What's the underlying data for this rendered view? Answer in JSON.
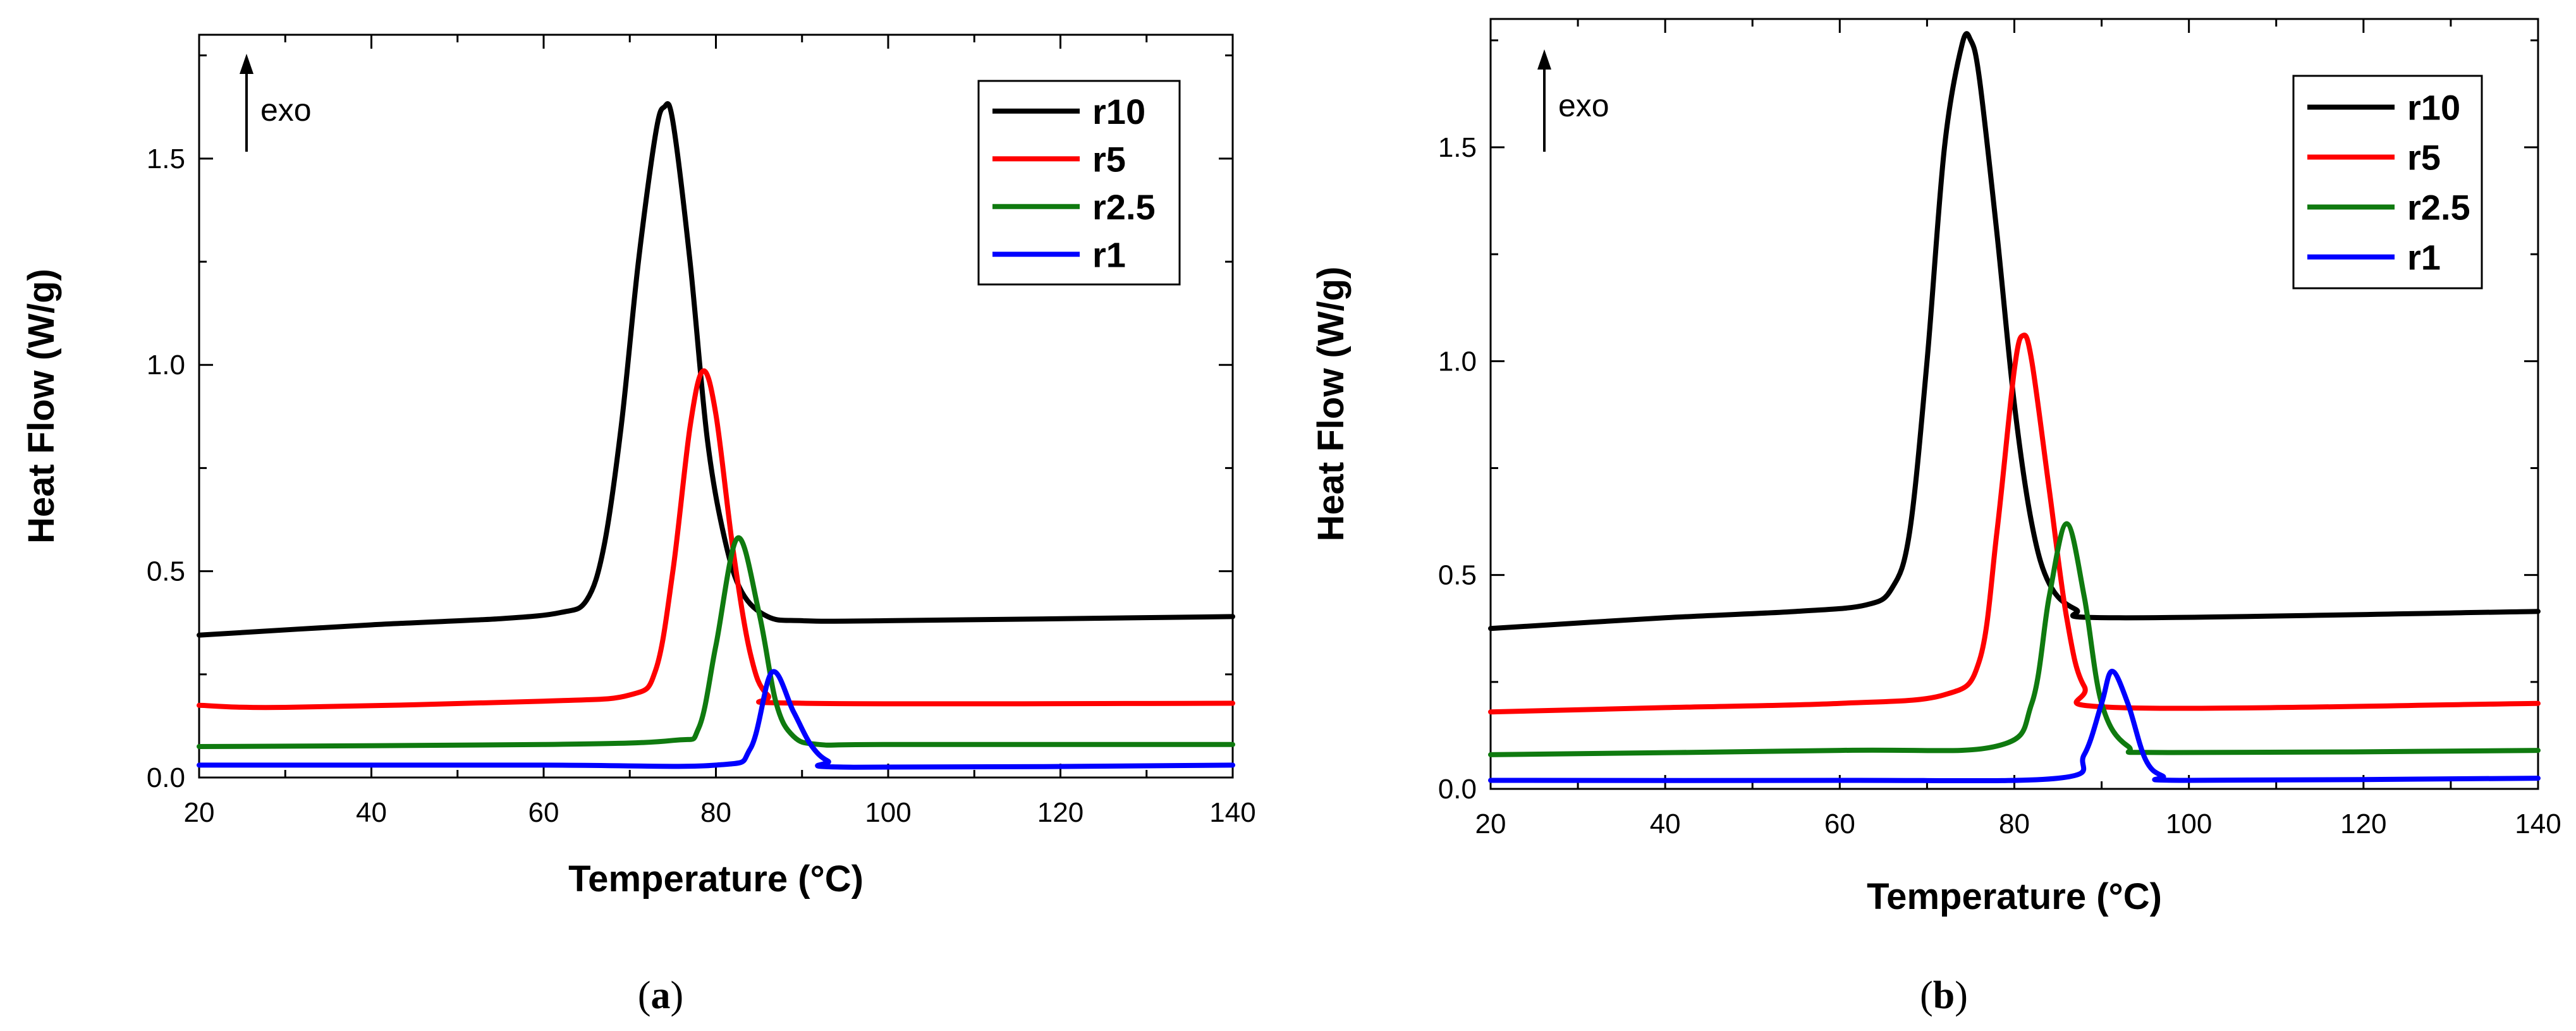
{
  "chart_data": [
    {
      "type": "line",
      "caption_letter": "a",
      "xlabel": "Temperature (°C)",
      "ylabel": "Heat Flow (W/g)",
      "xlim": [
        20,
        140
      ],
      "ylim": [
        0.0,
        1.8
      ],
      "xticks": [
        20,
        40,
        60,
        80,
        100,
        120,
        140
      ],
      "yticks": [
        0.0,
        0.5,
        1.0,
        1.5
      ],
      "ytick_labels": [
        "0.0",
        "0.5",
        "1.0",
        "1.5"
      ],
      "annotation": "exo",
      "legend_position": "top-right",
      "series": [
        {
          "name": "r10",
          "color": "#000000",
          "x": [
            20,
            40,
            55,
            62,
            65,
            67,
            69,
            71,
            73,
            74,
            75,
            77,
            79,
            81,
            83,
            86,
            90,
            100,
            140
          ],
          "y": [
            0.345,
            0.37,
            0.385,
            0.4,
            0.43,
            0.56,
            0.85,
            1.25,
            1.56,
            1.625,
            1.59,
            1.25,
            0.82,
            0.58,
            0.45,
            0.39,
            0.38,
            0.38,
            0.39
          ]
        },
        {
          "name": "r5",
          "color": "#ff0000",
          "x": [
            20,
            30,
            60,
            70,
            73,
            75,
            77,
            78.5,
            80,
            82,
            84,
            86,
            90,
            140
          ],
          "y": [
            0.175,
            0.17,
            0.185,
            0.2,
            0.26,
            0.5,
            0.85,
            0.985,
            0.88,
            0.55,
            0.3,
            0.2,
            0.18,
            0.18
          ]
        },
        {
          "name": "r2.5",
          "color": "#0f7a0f",
          "x": [
            20,
            60,
            75,
            78,
            80,
            82.5,
            85,
            87,
            89,
            92,
            100,
            140
          ],
          "y": [
            0.075,
            0.08,
            0.09,
            0.12,
            0.32,
            0.58,
            0.4,
            0.18,
            0.1,
            0.08,
            0.08,
            0.08
          ]
        },
        {
          "name": "r1",
          "color": "#0000ff",
          "x": [
            20,
            60,
            80,
            84,
            86.5,
            89,
            91,
            93,
            96,
            140
          ],
          "y": [
            0.03,
            0.03,
            0.03,
            0.07,
            0.255,
            0.16,
            0.08,
            0.04,
            0.025,
            0.03
          ]
        }
      ]
    },
    {
      "type": "line",
      "caption_letter": "b",
      "xlabel": "Temperature (°C)",
      "ylabel": "Heat Flow (W/g)",
      "xlim": [
        20,
        140
      ],
      "ylim": [
        0.0,
        1.8
      ],
      "xticks": [
        20,
        40,
        60,
        80,
        100,
        120,
        140
      ],
      "yticks": [
        0.0,
        0.5,
        1.0,
        1.5
      ],
      "ytick_labels": [
        "0.0",
        "0.5",
        "1.0",
        "1.5"
      ],
      "annotation": "exo",
      "legend_position": "top-right",
      "series": [
        {
          "name": "r10",
          "color": "#000000",
          "x": [
            20,
            40,
            55,
            63,
            66,
            68,
            70,
            72,
            74,
            75,
            76,
            78,
            80,
            82,
            84,
            87,
            92,
            140
          ],
          "y": [
            0.375,
            0.4,
            0.415,
            0.43,
            0.47,
            0.6,
            1.0,
            1.5,
            1.74,
            1.75,
            1.66,
            1.3,
            0.9,
            0.62,
            0.48,
            0.42,
            0.4,
            0.415
          ]
        },
        {
          "name": "r5",
          "color": "#ff0000",
          "x": [
            20,
            40,
            60,
            72,
            76,
            78,
            80,
            81,
            82,
            84,
            86,
            88,
            92,
            140
          ],
          "y": [
            0.18,
            0.19,
            0.2,
            0.22,
            0.3,
            0.6,
            0.98,
            1.06,
            1.0,
            0.7,
            0.4,
            0.24,
            0.19,
            0.2
          ]
        },
        {
          "name": "r2.5",
          "color": "#0f7a0f",
          "x": [
            20,
            60,
            78,
            82,
            84,
            86,
            88,
            90,
            93,
            98,
            140
          ],
          "y": [
            0.08,
            0.09,
            0.1,
            0.2,
            0.45,
            0.62,
            0.45,
            0.2,
            0.1,
            0.085,
            0.09
          ]
        },
        {
          "name": "r1",
          "color": "#0000ff",
          "x": [
            20,
            60,
            85,
            88,
            90,
            91.2,
            93,
            95,
            97,
            100,
            140
          ],
          "y": [
            0.02,
            0.02,
            0.025,
            0.08,
            0.2,
            0.275,
            0.2,
            0.07,
            0.03,
            0.02,
            0.025
          ]
        }
      ]
    }
  ]
}
